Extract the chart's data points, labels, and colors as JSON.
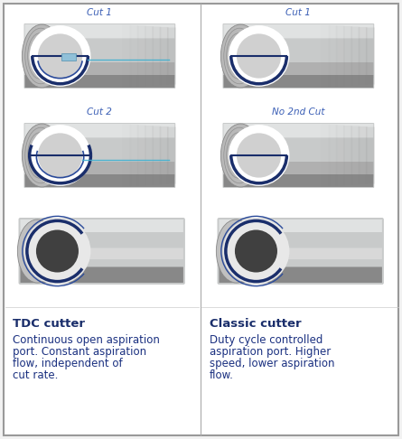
{
  "bg_color": "#f2f2f2",
  "panel_bg": "#ffffff",
  "border_color": "#999999",
  "divider_color": "#aaaaaa",
  "left_title": "TDC cutter",
  "right_title": "Classic cutter",
  "left_desc_lines": [
    "Continuous open aspiration",
    "port. Constant aspiration",
    "flow, independent of",
    "cut rate."
  ],
  "right_desc_lines": [
    "Duty cycle controlled",
    "aspiration port. Higher",
    "speed, lower aspiration",
    "flow."
  ],
  "label_cut1_left": "Cut 1",
  "label_cut2_left": "Cut 2",
  "label_cut1_right": "Cut 1",
  "label_no2nd_right": "No 2nd Cut",
  "blade_dark": "#1a2e6b",
  "blade_mid": "#2a4a9a",
  "blade_light": "#4070c0",
  "cyan_color": "#40b0d0",
  "text_label_color": "#3a5eb5",
  "title_color": "#1a2e6b",
  "desc_color": "#1a3080",
  "font_size_label": 7.5,
  "font_size_title": 9.5,
  "font_size_desc": 8.5,
  "tube_main": "#c8caca",
  "tube_light": "#e0e2e2",
  "tube_dark": "#888888",
  "tube_shadow": "#606060",
  "tube_tip_bg": "#d8d8d8"
}
